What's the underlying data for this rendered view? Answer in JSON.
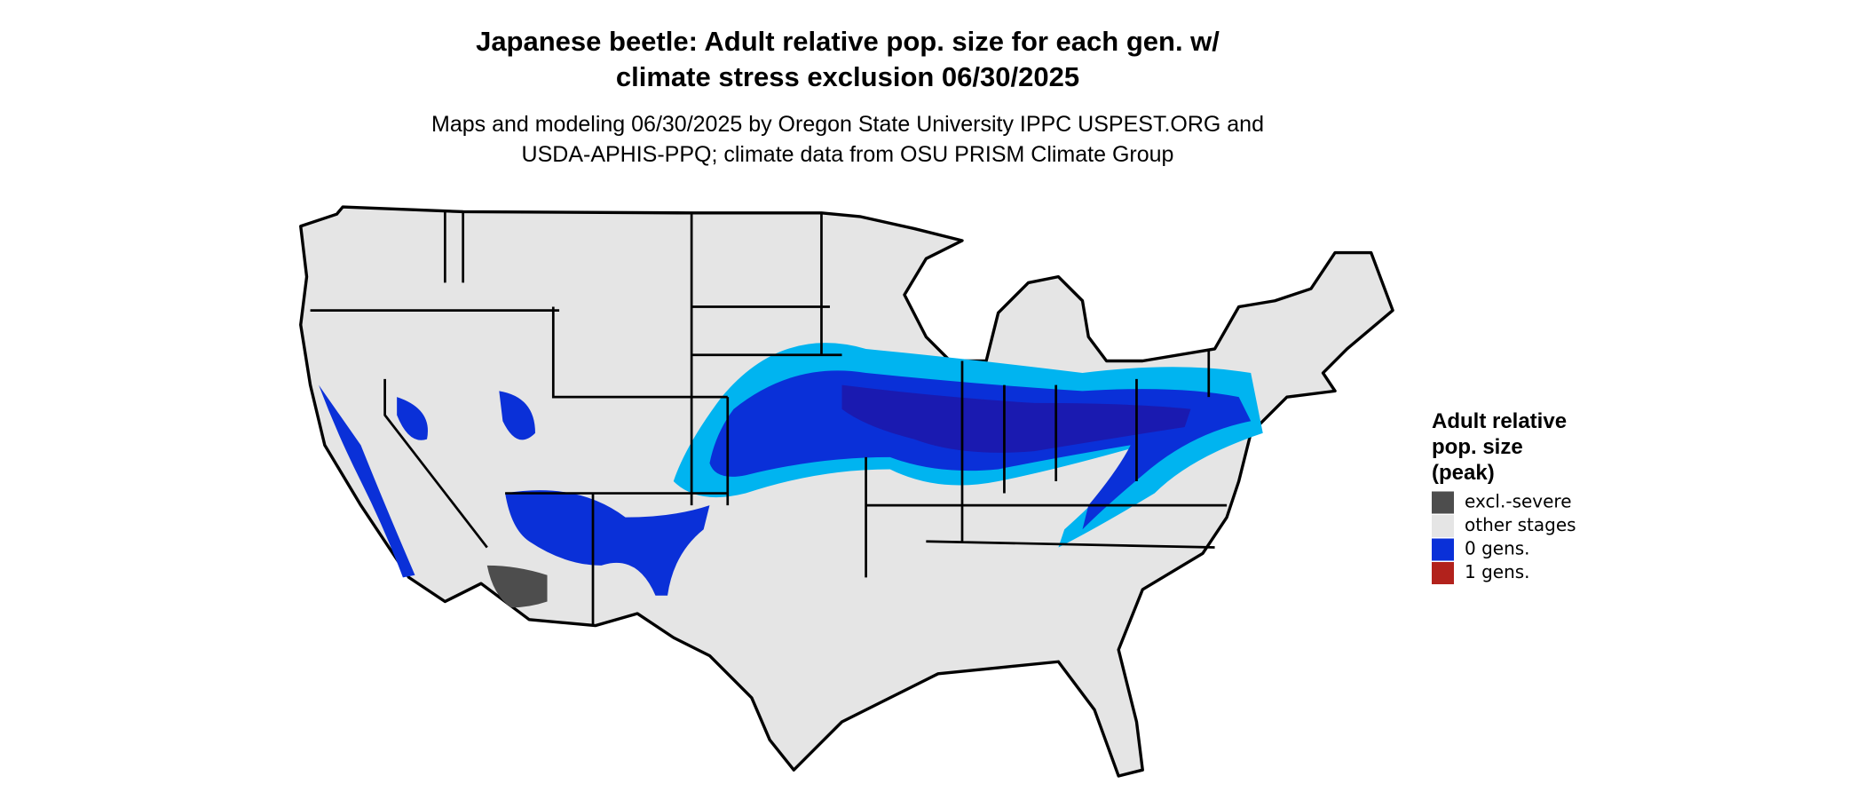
{
  "map": {
    "title_lines": [
      "Japanese beetle: Adult relative pop. size for each gen. w/",
      "climate stress exclusion 06/30/2025"
    ],
    "subtitle_lines": [
      "Maps and modeling 06/30/2025 by Oregon State University IPPC USPEST.ORG and",
      "USDA-APHIS-PPQ; climate data from OSU PRISM Climate Group"
    ],
    "legend": {
      "title_lines": [
        "Adult relative",
        "pop. size",
        "(peak)"
      ],
      "items": [
        {
          "label": "excl.-severe",
          "color": "#4d4d4d"
        },
        {
          "label": "other stages",
          "color": "#e5e5e5"
        },
        {
          "label": "0 gens.",
          "color": "#0a30d8"
        },
        {
          "label": "1 gens.",
          "color": "#b2221c"
        }
      ]
    }
  }
}
